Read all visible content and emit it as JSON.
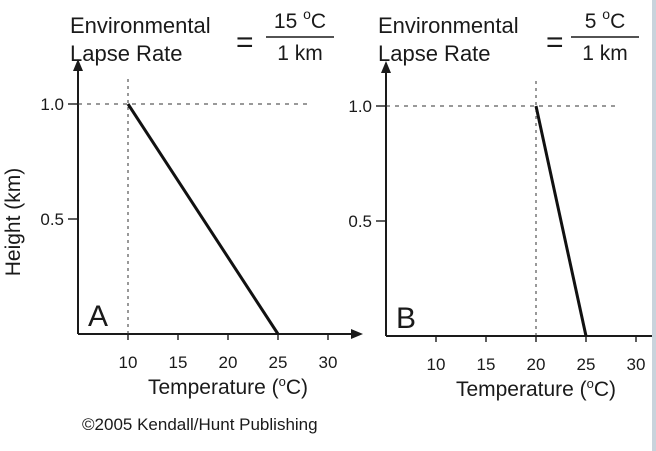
{
  "chart_data": [
    {
      "type": "line",
      "panel_label": "A",
      "title_lines": [
        "Environmental",
        "Lapse Rate"
      ],
      "equals": "=",
      "rate_numerator": "15 °C",
      "rate_numerator_value": "15",
      "rate_numerator_sup": "o",
      "rate_numerator_unit": "C",
      "rate_denominator": "1 km",
      "x": [
        25,
        10
      ],
      "y": [
        0,
        1.0
      ],
      "xlabel": "Temperature (°C)",
      "ylabel": "Height (km)",
      "xticks": [
        10,
        15,
        20,
        25,
        30
      ],
      "yticks": [
        0.5,
        1.0
      ],
      "ytick_labels": [
        "0.5",
        "1.0"
      ],
      "xlim": [
        5,
        32
      ],
      "ylim": [
        0,
        1.1
      ],
      "reference_lines": {
        "x": 10,
        "y": 1.0
      }
    },
    {
      "type": "line",
      "panel_label": "B",
      "title_lines": [
        "Environmental",
        "Lapse Rate"
      ],
      "equals": "=",
      "rate_numerator": "5 °C",
      "rate_numerator_value": "5",
      "rate_numerator_sup": "o",
      "rate_numerator_unit": "C",
      "rate_denominator": "1 km",
      "x": [
        25,
        20
      ],
      "y": [
        0,
        1.0
      ],
      "xlabel": "Temperature (°C)",
      "ylabel": "",
      "xticks": [
        10,
        15,
        20,
        25,
        30
      ],
      "yticks": [
        0.5,
        1.0
      ],
      "ytick_labels": [
        "0.5",
        "1.0"
      ],
      "xlim": [
        5,
        32
      ],
      "ylim": [
        0,
        1.1
      ],
      "reference_lines": {
        "x": 20,
        "y": 1.0
      }
    }
  ],
  "copyright": {
    "symbol": "©",
    "text": "2005 Kendall/Hunt Publishing"
  }
}
